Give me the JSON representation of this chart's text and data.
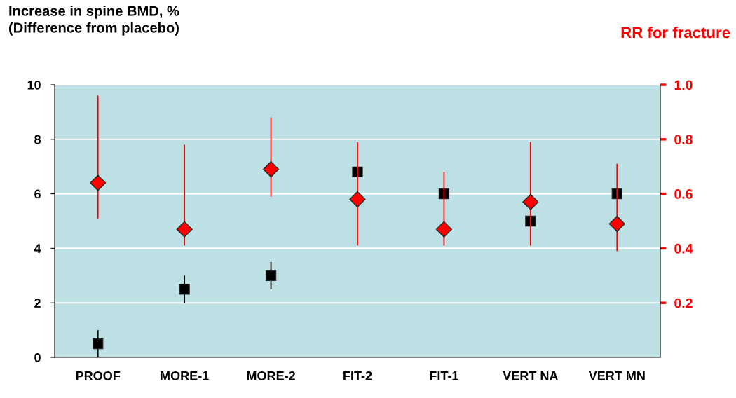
{
  "chart_data": {
    "type": "scatter",
    "ylabel": "Increase in spine BMD, %\n(Difference from placebo)",
    "y2label": "RR for fracture",
    "categories": [
      "PROOF",
      "MORE-1",
      "MORE-2",
      "FIT-2",
      "FIT-1",
      "VERT NA",
      "VERT MN"
    ],
    "series": [
      {
        "color": "#000000",
        "marker": "square",
        "values": [
          0.5,
          2.5,
          3.0,
          6.8,
          6.0,
          5.0,
          6.0
        ],
        "errors": [
          [
            0,
            1
          ],
          [
            2,
            3
          ],
          [
            2.5,
            3.5
          ],
          null,
          null,
          null,
          null
        ]
      },
      {
        "color": "#ff0000",
        "marker": "diamond",
        "axis": "y2",
        "values": [
          0.64,
          0.47,
          0.69,
          0.58,
          0.47,
          0.57,
          0.49
        ],
        "errors": [
          [
            0.51,
            0.96
          ],
          [
            0.41,
            0.78
          ],
          [
            0.59,
            0.88
          ],
          [
            0.41,
            0.79
          ],
          [
            0.41,
            0.68
          ],
          [
            0.41,
            0.79
          ],
          [
            0.39,
            0.71
          ]
        ]
      }
    ],
    "ylim": [
      0,
      10
    ],
    "yticks": [
      0,
      2,
      4,
      6,
      8,
      10
    ],
    "y2lim": [
      0,
      1
    ],
    "y2ticks": [
      0.2,
      0.4,
      0.6,
      0.8,
      {
        "value": 1.0,
        "label": "1.0"
      }
    ],
    "grid": "y"
  }
}
